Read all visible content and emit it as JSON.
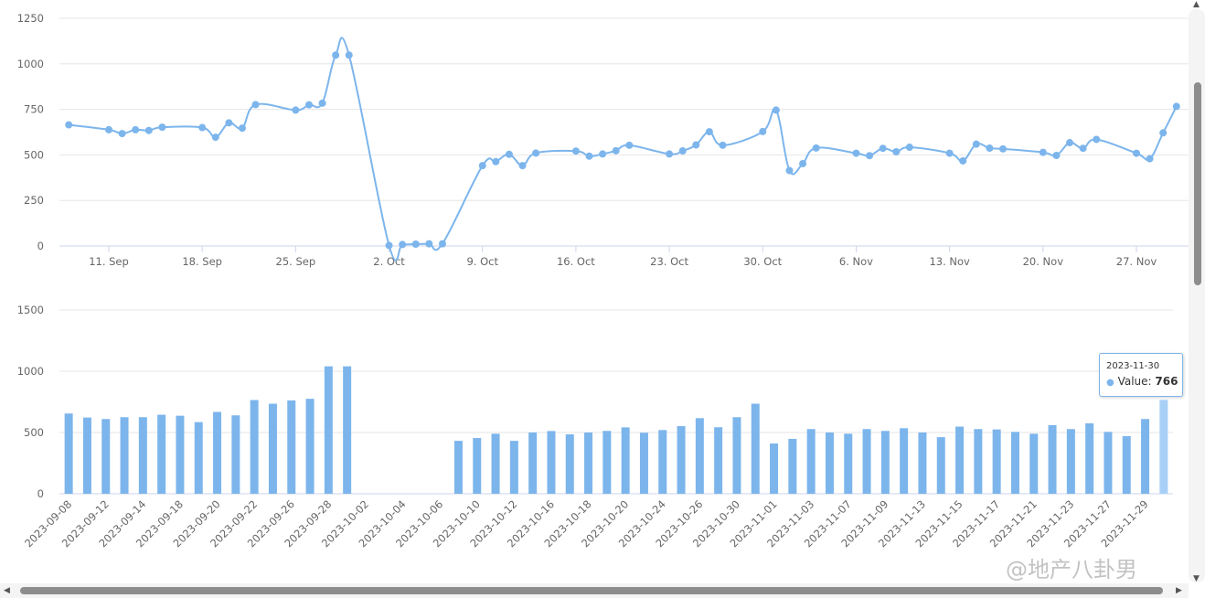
{
  "chart_data": [
    {
      "type": "line",
      "title": "",
      "xlabel": "",
      "ylabel": "",
      "ylim": [
        0,
        1250
      ],
      "yticks": [
        0,
        250,
        500,
        750,
        1000,
        1250
      ],
      "xtick_labels": [
        "11. Sep",
        "18. Sep",
        "25. Sep",
        "2. Oct",
        "9. Oct",
        "16. Oct",
        "23. Oct",
        "30. Oct",
        "6. Nov",
        "13. Nov",
        "20. Nov",
        "27. Nov"
      ],
      "xtick_dates": [
        "2023-09-11",
        "2023-09-18",
        "2023-09-25",
        "2023-10-02",
        "2023-10-09",
        "2023-10-16",
        "2023-10-23",
        "2023-10-30",
        "2023-11-06",
        "2023-11-13",
        "2023-11-20",
        "2023-11-27"
      ],
      "grid": true,
      "color": "#7cb5ec",
      "series": [
        {
          "x": [
            "2023-09-08",
            "2023-09-11",
            "2023-09-12",
            "2023-09-13",
            "2023-09-14",
            "2023-09-15",
            "2023-09-18",
            "2023-09-19",
            "2023-09-20",
            "2023-09-21",
            "2023-09-22",
            "2023-09-25",
            "2023-09-26",
            "2023-09-27",
            "2023-09-28",
            "2023-09-29",
            "2023-10-02",
            "2023-10-03",
            "2023-10-04",
            "2023-10-05",
            "2023-10-06",
            "2023-10-09",
            "2023-10-10",
            "2023-10-11",
            "2023-10-12",
            "2023-10-13",
            "2023-10-16",
            "2023-10-17",
            "2023-10-18",
            "2023-10-19",
            "2023-10-20",
            "2023-10-23",
            "2023-10-24",
            "2023-10-25",
            "2023-10-26",
            "2023-10-27",
            "2023-10-30",
            "2023-10-31",
            "2023-11-01",
            "2023-11-02",
            "2023-11-03",
            "2023-11-06",
            "2023-11-07",
            "2023-11-08",
            "2023-11-09",
            "2023-11-10",
            "2023-11-13",
            "2023-11-14",
            "2023-11-15",
            "2023-11-16",
            "2023-11-17",
            "2023-11-20",
            "2023-11-21",
            "2023-11-22",
            "2023-11-23",
            "2023-11-24",
            "2023-11-27",
            "2023-11-28",
            "2023-11-29",
            "2023-11-30"
          ],
          "values": [
            665,
            638,
            617,
            638,
            634,
            652,
            650,
            597,
            676,
            647,
            776,
            746,
            775,
            784,
            1048,
            1048,
            3,
            8,
            10,
            12,
            12,
            441,
            463,
            503,
            441,
            510,
            521,
            493,
            505,
            523,
            553,
            505,
            522,
            555,
            627,
            553,
            628,
            746,
            414,
            452,
            538,
            509,
            496,
            536,
            517,
            542,
            509,
            467,
            559,
            537,
            533,
            514,
            497,
            567,
            536,
            585,
            509,
            479,
            621,
            766
          ]
        }
      ]
    },
    {
      "type": "bar",
      "title": "",
      "xlabel": "",
      "ylabel": "",
      "ylim": [
        0,
        1500
      ],
      "yticks": [
        0,
        500,
        1000,
        1500
      ],
      "grid": true,
      "color": "#7cb5ec",
      "highlight_color": "#a8d0f7",
      "categories": [
        "2023-09-08",
        "2023-09-11",
        "2023-09-12",
        "2023-09-13",
        "2023-09-14",
        "2023-09-15",
        "2023-09-18",
        "2023-09-19",
        "2023-09-20",
        "2023-09-21",
        "2023-09-22",
        "2023-09-25",
        "2023-09-26",
        "2023-09-27",
        "2023-09-28",
        "2023-09-29",
        "2023-10-02",
        "2023-10-03",
        "2023-10-04",
        "2023-10-05",
        "2023-10-06",
        "2023-10-09",
        "2023-10-10",
        "2023-10-11",
        "2023-10-12",
        "2023-10-13",
        "2023-10-16",
        "2023-10-17",
        "2023-10-18",
        "2023-10-19",
        "2023-10-20",
        "2023-10-23",
        "2023-10-24",
        "2023-10-25",
        "2023-10-26",
        "2023-10-27",
        "2023-10-30",
        "2023-10-31",
        "2023-11-01",
        "2023-11-02",
        "2023-11-03",
        "2023-11-06",
        "2023-11-07",
        "2023-11-08",
        "2023-11-09",
        "2023-11-10",
        "2023-11-13",
        "2023-11-14",
        "2023-11-15",
        "2023-11-16",
        "2023-11-17",
        "2023-11-20",
        "2023-11-21",
        "2023-11-22",
        "2023-11-23",
        "2023-11-24",
        "2023-11-27",
        "2023-11-28",
        "2023-11-29",
        "2023-11-30"
      ],
      "values": [
        655,
        622,
        610,
        625,
        625,
        645,
        637,
        585,
        668,
        640,
        765,
        735,
        762,
        775,
        1040,
        1040,
        0,
        0,
        0,
        0,
        0,
        432,
        455,
        490,
        432,
        500,
        512,
        485,
        500,
        513,
        542,
        498,
        520,
        552,
        617,
        543,
        625,
        735,
        410,
        448,
        528,
        500,
        490,
        528,
        513,
        535,
        500,
        462,
        548,
        528,
        525,
        505,
        490,
        560,
        528,
        575,
        505,
        470,
        610,
        766
      ],
      "xtick_labels": [
        "2023-09-08",
        "2023-09-12",
        "2023-09-14",
        "2023-09-18",
        "2023-09-20",
        "2023-09-22",
        "2023-09-26",
        "2023-09-28",
        "2023-10-02",
        "2023-10-04",
        "2023-10-06",
        "2023-10-10",
        "2023-10-12",
        "2023-10-16",
        "2023-10-18",
        "2023-10-20",
        "2023-10-24",
        "2023-10-26",
        "2023-10-30",
        "2023-11-01",
        "2023-11-03",
        "2023-11-07",
        "2023-11-09",
        "2023-11-13",
        "2023-11-15",
        "2023-11-17",
        "2023-11-21",
        "2023-11-23",
        "2023-11-27",
        "2023-11-29"
      ],
      "tooltip": {
        "date": "2023-11-30",
        "label": "Value:",
        "value": "766"
      }
    }
  ],
  "watermark": "@地产八卦男",
  "scroll_arrows": {
    "up": "▲",
    "down": "▼",
    "left": "◀",
    "right": "▶"
  }
}
